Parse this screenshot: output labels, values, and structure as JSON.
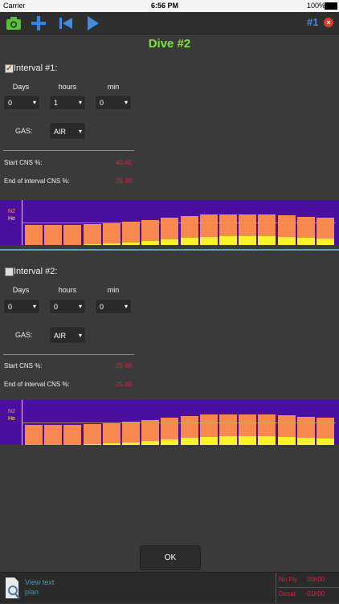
{
  "status": {
    "carrier": "Carrier",
    "time": "6:56 PM",
    "battery": "100%"
  },
  "toolbar": {
    "icons": [
      "camera-icon",
      "plus-icon",
      "skip-back-icon",
      "play-icon"
    ],
    "dive_badge": "#1",
    "close_icon": "close-icon"
  },
  "dive_title": "Dive #2",
  "intervals": [
    {
      "label": "Interval #1:",
      "checked": true,
      "col_days": "Days",
      "col_hours": "hours",
      "col_min": "min",
      "days": "0",
      "hours": "1",
      "min": "0",
      "gas_label": "GAS:",
      "gas": "AIR",
      "start_cns_label": "Start CNS %:",
      "start_cns": "40.45",
      "end_cns_label": "End of interval CNS %:",
      "end_cns": "25.49"
    },
    {
      "label": "Interval #2:",
      "checked": false,
      "col_days": "Days",
      "col_hours": "hours",
      "col_min": "min",
      "days": "0",
      "hours": "0",
      "min": "0",
      "gas_label": "GAS:",
      "gas": "AIR",
      "start_cns_label": "Start CNS %:",
      "start_cns": "25.49",
      "end_cns_label": "End of interval CNS %:",
      "end_cns": "25.49"
    }
  ],
  "chart_labels": {
    "n2": "N2",
    "he": "He"
  },
  "chart_data": [
    {
      "type": "bar",
      "series": [
        {
          "name": "N2",
          "values": [
            0.45,
            0.45,
            0.45,
            0.47,
            0.49,
            0.51,
            0.55,
            0.61,
            0.65,
            0.67,
            0.68,
            0.68,
            0.67,
            0.66,
            0.63,
            0.61
          ]
        },
        {
          "name": "He",
          "values": [
            0.0,
            0.0,
            0.0,
            0.02,
            0.04,
            0.06,
            0.09,
            0.13,
            0.16,
            0.18,
            0.2,
            0.2,
            0.19,
            0.18,
            0.16,
            0.14
          ]
        }
      ]
    },
    {
      "type": "bar",
      "series": [
        {
          "name": "N2",
          "values": [
            0.45,
            0.45,
            0.45,
            0.47,
            0.49,
            0.51,
            0.55,
            0.61,
            0.65,
            0.67,
            0.68,
            0.68,
            0.67,
            0.66,
            0.63,
            0.61
          ]
        },
        {
          "name": "He",
          "values": [
            0.0,
            0.0,
            0.0,
            0.02,
            0.04,
            0.06,
            0.09,
            0.13,
            0.16,
            0.18,
            0.2,
            0.2,
            0.19,
            0.18,
            0.16,
            0.14
          ]
        }
      ]
    }
  ],
  "ok_label": "OK",
  "bottom": {
    "view_text": "View text",
    "plan": "plan",
    "no_fly_label": "No Fly",
    "no_fly_value": "00h00",
    "desat_label": "Desat",
    "desat_value": "01h00"
  },
  "colors": {
    "accent_green": "#7fe23a",
    "cns_red": "#d7263d",
    "chart_bg": "#4b0fa0",
    "n2": "#f7894f",
    "he": "#f9f12a",
    "teal": "#58a9b4"
  }
}
